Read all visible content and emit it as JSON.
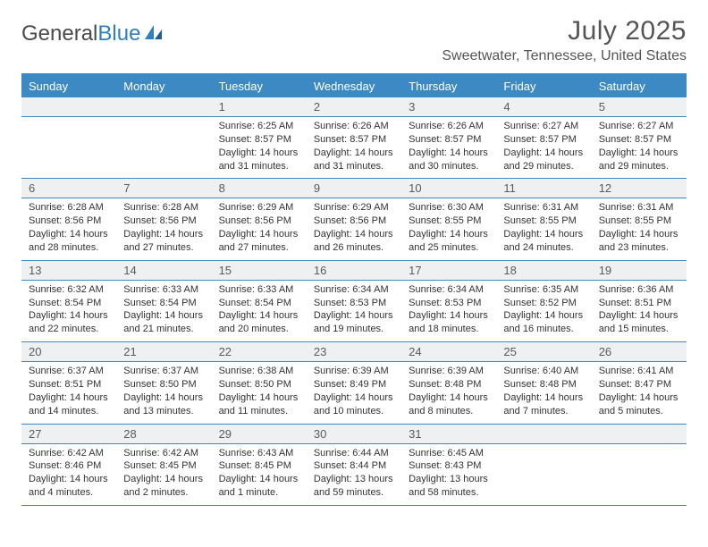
{
  "brand": {
    "word1": "General",
    "word2": "Blue"
  },
  "title": "July 2025",
  "location": "Sweetwater, Tennessee, United States",
  "colors": {
    "header_bg": "#3d89c3",
    "daynum_bg": "#eef0f2",
    "text": "#333333",
    "title_text": "#555555"
  },
  "day_names": [
    "Sunday",
    "Monday",
    "Tuesday",
    "Wednesday",
    "Thursday",
    "Friday",
    "Saturday"
  ],
  "weeks": [
    {
      "nums": [
        "",
        "",
        "1",
        "2",
        "3",
        "4",
        "5"
      ],
      "cells": [
        null,
        null,
        {
          "sunrise": "Sunrise: 6:25 AM",
          "sunset": "Sunset: 8:57 PM",
          "day1": "Daylight: 14 hours",
          "day2": "and 31 minutes."
        },
        {
          "sunrise": "Sunrise: 6:26 AM",
          "sunset": "Sunset: 8:57 PM",
          "day1": "Daylight: 14 hours",
          "day2": "and 31 minutes."
        },
        {
          "sunrise": "Sunrise: 6:26 AM",
          "sunset": "Sunset: 8:57 PM",
          "day1": "Daylight: 14 hours",
          "day2": "and 30 minutes."
        },
        {
          "sunrise": "Sunrise: 6:27 AM",
          "sunset": "Sunset: 8:57 PM",
          "day1": "Daylight: 14 hours",
          "day2": "and 29 minutes."
        },
        {
          "sunrise": "Sunrise: 6:27 AM",
          "sunset": "Sunset: 8:57 PM",
          "day1": "Daylight: 14 hours",
          "day2": "and 29 minutes."
        }
      ]
    },
    {
      "nums": [
        "6",
        "7",
        "8",
        "9",
        "10",
        "11",
        "12"
      ],
      "cells": [
        {
          "sunrise": "Sunrise: 6:28 AM",
          "sunset": "Sunset: 8:56 PM",
          "day1": "Daylight: 14 hours",
          "day2": "and 28 minutes."
        },
        {
          "sunrise": "Sunrise: 6:28 AM",
          "sunset": "Sunset: 8:56 PM",
          "day1": "Daylight: 14 hours",
          "day2": "and 27 minutes."
        },
        {
          "sunrise": "Sunrise: 6:29 AM",
          "sunset": "Sunset: 8:56 PM",
          "day1": "Daylight: 14 hours",
          "day2": "and 27 minutes."
        },
        {
          "sunrise": "Sunrise: 6:29 AM",
          "sunset": "Sunset: 8:56 PM",
          "day1": "Daylight: 14 hours",
          "day2": "and 26 minutes."
        },
        {
          "sunrise": "Sunrise: 6:30 AM",
          "sunset": "Sunset: 8:55 PM",
          "day1": "Daylight: 14 hours",
          "day2": "and 25 minutes."
        },
        {
          "sunrise": "Sunrise: 6:31 AM",
          "sunset": "Sunset: 8:55 PM",
          "day1": "Daylight: 14 hours",
          "day2": "and 24 minutes."
        },
        {
          "sunrise": "Sunrise: 6:31 AM",
          "sunset": "Sunset: 8:55 PM",
          "day1": "Daylight: 14 hours",
          "day2": "and 23 minutes."
        }
      ]
    },
    {
      "nums": [
        "13",
        "14",
        "15",
        "16",
        "17",
        "18",
        "19"
      ],
      "cells": [
        {
          "sunrise": "Sunrise: 6:32 AM",
          "sunset": "Sunset: 8:54 PM",
          "day1": "Daylight: 14 hours",
          "day2": "and 22 minutes."
        },
        {
          "sunrise": "Sunrise: 6:33 AM",
          "sunset": "Sunset: 8:54 PM",
          "day1": "Daylight: 14 hours",
          "day2": "and 21 minutes."
        },
        {
          "sunrise": "Sunrise: 6:33 AM",
          "sunset": "Sunset: 8:54 PM",
          "day1": "Daylight: 14 hours",
          "day2": "and 20 minutes."
        },
        {
          "sunrise": "Sunrise: 6:34 AM",
          "sunset": "Sunset: 8:53 PM",
          "day1": "Daylight: 14 hours",
          "day2": "and 19 minutes."
        },
        {
          "sunrise": "Sunrise: 6:34 AM",
          "sunset": "Sunset: 8:53 PM",
          "day1": "Daylight: 14 hours",
          "day2": "and 18 minutes."
        },
        {
          "sunrise": "Sunrise: 6:35 AM",
          "sunset": "Sunset: 8:52 PM",
          "day1": "Daylight: 14 hours",
          "day2": "and 16 minutes."
        },
        {
          "sunrise": "Sunrise: 6:36 AM",
          "sunset": "Sunset: 8:51 PM",
          "day1": "Daylight: 14 hours",
          "day2": "and 15 minutes."
        }
      ]
    },
    {
      "nums": [
        "20",
        "21",
        "22",
        "23",
        "24",
        "25",
        "26"
      ],
      "cells": [
        {
          "sunrise": "Sunrise: 6:37 AM",
          "sunset": "Sunset: 8:51 PM",
          "day1": "Daylight: 14 hours",
          "day2": "and 14 minutes."
        },
        {
          "sunrise": "Sunrise: 6:37 AM",
          "sunset": "Sunset: 8:50 PM",
          "day1": "Daylight: 14 hours",
          "day2": "and 13 minutes."
        },
        {
          "sunrise": "Sunrise: 6:38 AM",
          "sunset": "Sunset: 8:50 PM",
          "day1": "Daylight: 14 hours",
          "day2": "and 11 minutes."
        },
        {
          "sunrise": "Sunrise: 6:39 AM",
          "sunset": "Sunset: 8:49 PM",
          "day1": "Daylight: 14 hours",
          "day2": "and 10 minutes."
        },
        {
          "sunrise": "Sunrise: 6:39 AM",
          "sunset": "Sunset: 8:48 PM",
          "day1": "Daylight: 14 hours",
          "day2": "and 8 minutes."
        },
        {
          "sunrise": "Sunrise: 6:40 AM",
          "sunset": "Sunset: 8:48 PM",
          "day1": "Daylight: 14 hours",
          "day2": "and 7 minutes."
        },
        {
          "sunrise": "Sunrise: 6:41 AM",
          "sunset": "Sunset: 8:47 PM",
          "day1": "Daylight: 14 hours",
          "day2": "and 5 minutes."
        }
      ]
    },
    {
      "nums": [
        "27",
        "28",
        "29",
        "30",
        "31",
        "",
        ""
      ],
      "cells": [
        {
          "sunrise": "Sunrise: 6:42 AM",
          "sunset": "Sunset: 8:46 PM",
          "day1": "Daylight: 14 hours",
          "day2": "and 4 minutes."
        },
        {
          "sunrise": "Sunrise: 6:42 AM",
          "sunset": "Sunset: 8:45 PM",
          "day1": "Daylight: 14 hours",
          "day2": "and 2 minutes."
        },
        {
          "sunrise": "Sunrise: 6:43 AM",
          "sunset": "Sunset: 8:45 PM",
          "day1": "Daylight: 14 hours",
          "day2": "and 1 minute."
        },
        {
          "sunrise": "Sunrise: 6:44 AM",
          "sunset": "Sunset: 8:44 PM",
          "day1": "Daylight: 13 hours",
          "day2": "and 59 minutes."
        },
        {
          "sunrise": "Sunrise: 6:45 AM",
          "sunset": "Sunset: 8:43 PM",
          "day1": "Daylight: 13 hours",
          "day2": "and 58 minutes."
        },
        null,
        null
      ]
    }
  ]
}
